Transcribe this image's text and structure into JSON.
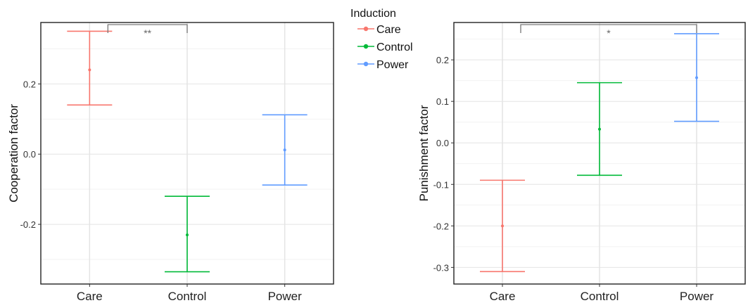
{
  "legend": {
    "title": "Induction",
    "entries": [
      {
        "label": "Care",
        "color": "#F8766D"
      },
      {
        "label": "Control",
        "color": "#00BA38"
      },
      {
        "label": "Power",
        "color": "#619CFF"
      }
    ]
  },
  "chart_data": [
    {
      "type": "errorbar",
      "categories": [
        "Care",
        "Control",
        "Power"
      ],
      "colors": [
        "#F8766D",
        "#00BA38",
        "#619CFF"
      ],
      "series": [
        {
          "name": "Care",
          "mean": 0.24,
          "lower": 0.14,
          "upper": 0.35
        },
        {
          "name": "Control",
          "mean": -0.23,
          "lower": -0.335,
          "upper": -0.12
        },
        {
          "name": "Power",
          "mean": 0.012,
          "lower": -0.088,
          "upper": 0.112
        }
      ],
      "ylabel": "Cooperation factor",
      "xlabel": "",
      "ylim": [
        -0.37,
        0.375
      ],
      "yticks": [
        -0.2,
        0.0,
        0.2
      ],
      "ytick_labels": [
        "-0.2",
        "0.0",
        "0.2"
      ],
      "grid": true,
      "significance": {
        "from": "Care",
        "to": "Control",
        "label": "**"
      }
    },
    {
      "type": "errorbar",
      "categories": [
        "Care",
        "Control",
        "Power"
      ],
      "colors": [
        "#F8766D",
        "#00BA38",
        "#619CFF"
      ],
      "series": [
        {
          "name": "Care",
          "mean": -0.2,
          "lower": -0.31,
          "upper": -0.09
        },
        {
          "name": "Control",
          "mean": 0.033,
          "lower": -0.078,
          "upper": 0.145
        },
        {
          "name": "Power",
          "mean": 0.157,
          "lower": 0.052,
          "upper": 0.263
        }
      ],
      "ylabel": "Punishment factor",
      "xlabel": "",
      "ylim": [
        -0.34,
        0.29
      ],
      "yticks": [
        -0.3,
        -0.2,
        -0.1,
        0.0,
        0.1,
        0.2
      ],
      "ytick_labels": [
        "-0.3",
        "-0.2",
        "-0.1",
        "0.0",
        "0.1",
        "0.2"
      ],
      "grid": true,
      "significance": {
        "from": "Care",
        "to": "Power",
        "label": "*"
      }
    }
  ]
}
